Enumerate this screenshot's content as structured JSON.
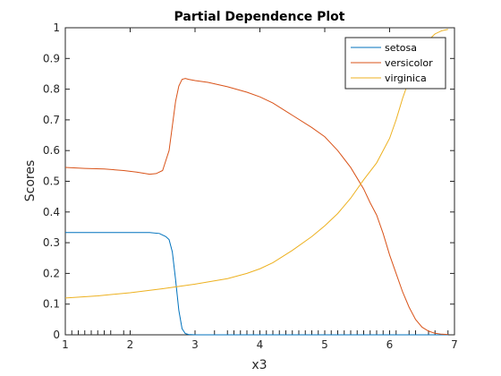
{
  "chart_data": {
    "type": "line",
    "title": "Partial Dependence Plot",
    "xlabel": "x3",
    "ylabel": "Scores",
    "xlim": [
      1,
      7
    ],
    "ylim": [
      0,
      1
    ],
    "xticks": [
      "1",
      "2",
      "3",
      "4",
      "5",
      "6",
      "7"
    ],
    "yticks": [
      "0",
      "0.1",
      "0.2",
      "0.3",
      "0.4",
      "0.5",
      "0.6",
      "0.7",
      "0.8",
      "0.9",
      "1"
    ],
    "grid": false,
    "legend_position": "top-right",
    "rug": [
      1.1,
      1.2,
      1.3,
      1.4,
      1.5,
      1.6,
      1.7,
      1.9,
      3.0,
      3.3,
      3.5,
      3.6,
      3.7,
      3.8,
      3.9,
      4.0,
      4.1,
      4.2,
      4.3,
      4.4,
      4.5,
      4.6,
      4.7,
      4.8,
      4.9,
      5.0,
      5.1,
      5.2,
      5.3,
      5.4,
      5.5,
      5.6,
      5.7,
      5.8,
      5.9,
      6.0,
      6.1,
      6.3,
      6.4,
      6.6,
      6.7,
      6.9
    ],
    "series": [
      {
        "name": "setosa",
        "color": "#0072BD",
        "x": [
          1.0,
          1.5,
          2.0,
          2.3,
          2.45,
          2.55,
          2.6,
          2.65,
          2.7,
          2.75,
          2.8,
          2.85,
          2.9,
          3.0,
          4.0,
          5.0,
          6.0,
          6.9
        ],
        "y": [
          0.333,
          0.333,
          0.333,
          0.333,
          0.33,
          0.32,
          0.31,
          0.27,
          0.18,
          0.08,
          0.02,
          0.004,
          0.001,
          0.0,
          0.0,
          0.0,
          0.0,
          0.0
        ]
      },
      {
        "name": "versicolor",
        "color": "#D95319",
        "x": [
          1.0,
          1.3,
          1.6,
          1.9,
          2.1,
          2.3,
          2.4,
          2.5,
          2.6,
          2.65,
          2.7,
          2.75,
          2.8,
          2.85,
          2.9,
          3.0,
          3.2,
          3.5,
          3.8,
          4.0,
          4.2,
          4.5,
          4.8,
          5.0,
          5.2,
          5.4,
          5.5,
          5.6,
          5.7,
          5.8,
          5.9,
          6.0,
          6.1,
          6.2,
          6.3,
          6.4,
          6.5,
          6.6,
          6.7,
          6.8,
          6.9
        ],
        "y": [
          0.545,
          0.542,
          0.54,
          0.535,
          0.53,
          0.523,
          0.525,
          0.535,
          0.6,
          0.68,
          0.76,
          0.81,
          0.832,
          0.835,
          0.832,
          0.828,
          0.822,
          0.808,
          0.79,
          0.775,
          0.755,
          0.715,
          0.675,
          0.645,
          0.6,
          0.545,
          0.51,
          0.475,
          0.43,
          0.39,
          0.33,
          0.26,
          0.2,
          0.14,
          0.09,
          0.05,
          0.025,
          0.012,
          0.005,
          0.002,
          0.001
        ]
      },
      {
        "name": "virginica",
        "color": "#EDB120",
        "x": [
          1.0,
          1.5,
          2.0,
          2.5,
          3.0,
          3.5,
          3.8,
          4.0,
          4.2,
          4.5,
          4.8,
          5.0,
          5.2,
          5.4,
          5.6,
          5.8,
          6.0,
          6.1,
          6.2,
          6.3,
          6.4,
          6.5,
          6.6,
          6.7,
          6.8,
          6.9
        ],
        "y": [
          0.12,
          0.127,
          0.137,
          0.15,
          0.165,
          0.183,
          0.2,
          0.215,
          0.235,
          0.275,
          0.32,
          0.355,
          0.395,
          0.445,
          0.505,
          0.56,
          0.64,
          0.7,
          0.77,
          0.83,
          0.885,
          0.93,
          0.96,
          0.98,
          0.99,
          0.995
        ]
      }
    ]
  }
}
